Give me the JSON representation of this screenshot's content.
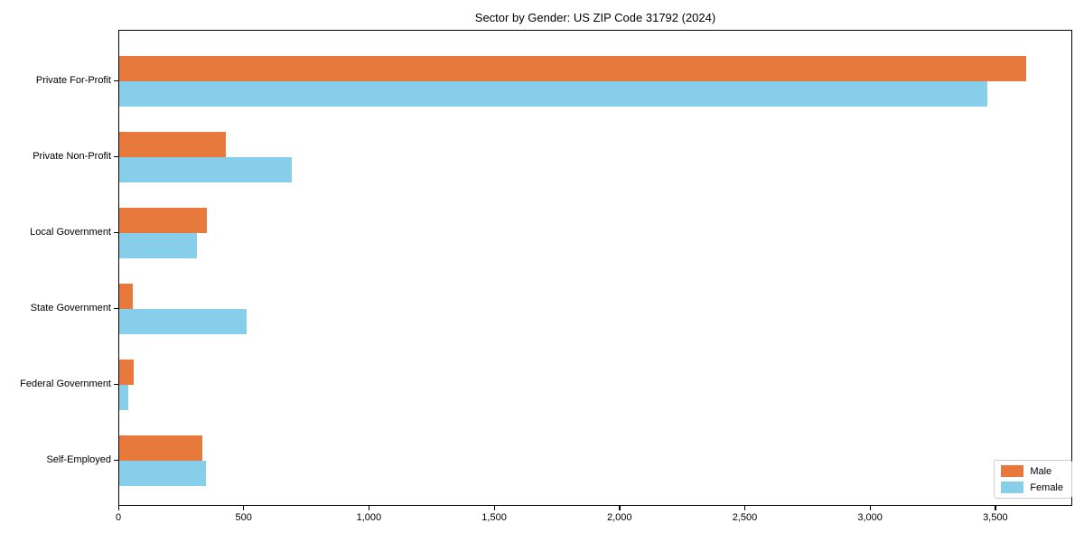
{
  "title": "Sector by Gender: US ZIP Code 31792 (2024)",
  "colors": {
    "male": "#E8793C",
    "female": "#87CEEB",
    "axis": "#000000",
    "legend_border": "#cccccc",
    "background": "#ffffff"
  },
  "chart_data": {
    "type": "bar",
    "orientation": "horizontal",
    "title": "Sector by Gender: US ZIP Code 31792 (2024)",
    "categories": [
      "Private For-Profit",
      "Private Non-Profit",
      "Local Government",
      "State Government",
      "Federal Government",
      "Self-Employed"
    ],
    "series": [
      {
        "name": "Male",
        "color": "#E8793C",
        "values": [
          3620,
          425,
          350,
          53,
          57,
          330
        ]
      },
      {
        "name": "Female",
        "color": "#87CEEB",
        "values": [
          3465,
          690,
          310,
          510,
          35,
          345
        ]
      }
    ],
    "xlabel": "",
    "ylabel": "",
    "xlim": [
      0,
      3807
    ],
    "x_ticks": [
      0,
      500,
      1000,
      1500,
      2000,
      2500,
      3000,
      3500
    ],
    "x_tick_labels": [
      "0",
      "500",
      "1,000",
      "1,500",
      "2,000",
      "2,500",
      "3,000",
      "3,500"
    ],
    "grid": false,
    "legend_position": "lower right"
  },
  "legend": {
    "items": [
      {
        "label": "Male"
      },
      {
        "label": "Female"
      }
    ]
  }
}
